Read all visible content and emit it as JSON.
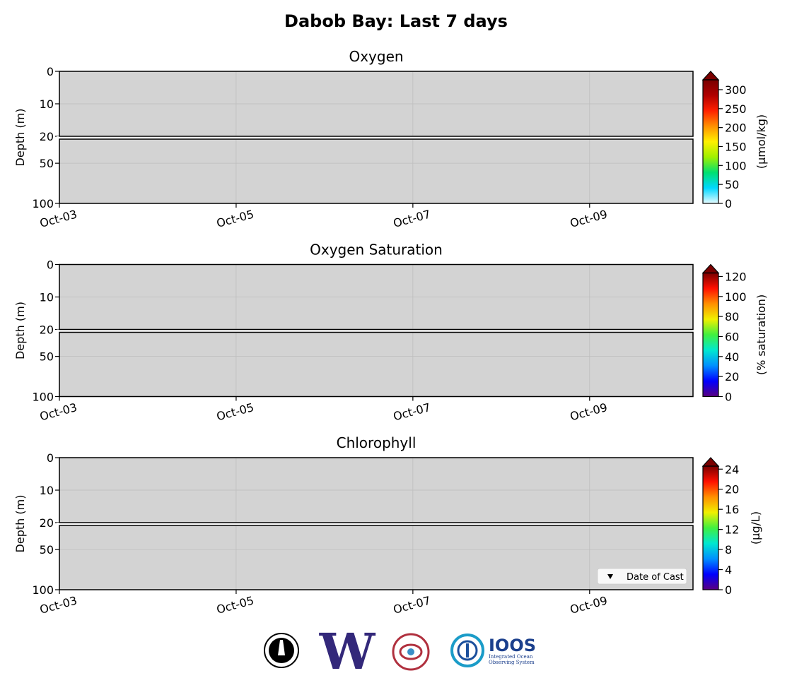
{
  "title": "Dabob Bay: Last 7 days",
  "chart_data": [
    {
      "type": "heatmap",
      "title": "Oxygen",
      "y_label": "Depth (m)",
      "facecolor": "#d3d3d3",
      "grid": true,
      "xlim": [
        3,
        10.17
      ],
      "xticks": [
        {
          "value": 3,
          "label": "Oct-03"
        },
        {
          "value": 5,
          "label": "Oct-05"
        },
        {
          "value": 7,
          "label": "Oct-07"
        },
        {
          "value": 9,
          "label": "Oct-09"
        }
      ],
      "ylim": [
        0,
        20
      ],
      "yticks": [
        0,
        10,
        20
      ],
      "lower_ylim": [
        20,
        100
      ],
      "lower_yticks": [
        50,
        100
      ],
      "colorbar": {
        "label": "(μmol/kg)",
        "lim": [
          0,
          326
        ],
        "ticks": [
          0,
          50,
          100,
          150,
          200,
          250,
          300
        ],
        "extend": "max",
        "colors": [
          "#e8fbff",
          "#00d8ff",
          "#00e070",
          "#a0f000",
          "#fff000",
          "#ff9000",
          "#ff2000",
          "#b00000",
          "#7a0000"
        ]
      }
    },
    {
      "type": "heatmap",
      "title": "Oxygen Saturation",
      "y_label": "Depth (m)",
      "facecolor": "#d3d3d3",
      "grid": true,
      "xlim": [
        3,
        10.17
      ],
      "xticks": [
        {
          "value": 3,
          "label": "Oct-03"
        },
        {
          "value": 5,
          "label": "Oct-05"
        },
        {
          "value": 7,
          "label": "Oct-07"
        },
        {
          "value": 9,
          "label": "Oct-09"
        }
      ],
      "ylim": [
        0,
        20
      ],
      "yticks": [
        0,
        10,
        20
      ],
      "lower_ylim": [
        20,
        100
      ],
      "lower_yticks": [
        50,
        100
      ],
      "colorbar": {
        "label": "(% saturation)",
        "lim": [
          0,
          123.5
        ],
        "ticks": [
          0,
          20,
          40,
          60,
          80,
          100,
          120
        ],
        "extend": "max",
        "colors": [
          "#5a0080",
          "#0000ff",
          "#0090ff",
          "#00e8d0",
          "#40f040",
          "#f0f000",
          "#ff9000",
          "#ff1000",
          "#7a0000"
        ]
      }
    },
    {
      "type": "heatmap",
      "title": "Chlorophyll",
      "y_label": "Depth (m)",
      "facecolor": "#d3d3d3",
      "grid": true,
      "xlim": [
        3,
        10.17
      ],
      "xticks": [
        {
          "value": 3,
          "label": "Oct-03"
        },
        {
          "value": 5,
          "label": "Oct-05"
        },
        {
          "value": 7,
          "label": "Oct-07"
        },
        {
          "value": 9,
          "label": "Oct-09"
        }
      ],
      "ylim": [
        0,
        20
      ],
      "yticks": [
        0,
        10,
        20
      ],
      "lower_ylim": [
        20,
        100
      ],
      "lower_yticks": [
        50,
        100
      ],
      "colorbar": {
        "label": "(μg/L)",
        "lim": [
          0,
          24.6
        ],
        "ticks": [
          0,
          4,
          8,
          12,
          16,
          20,
          24
        ],
        "extend": "max",
        "colors": [
          "#5a0080",
          "#0000ff",
          "#0090ff",
          "#00e8d0",
          "#40f040",
          "#f0f000",
          "#ff9000",
          "#ff1000",
          "#7a0000"
        ]
      },
      "legend": {
        "entries": [
          "Date of Cast"
        ],
        "loc": "lower right"
      }
    }
  ],
  "footer": {
    "uw": "W",
    "ioos": "IOOS",
    "ioos_tagline": [
      "Integrated Ocean",
      "Observing System"
    ]
  }
}
